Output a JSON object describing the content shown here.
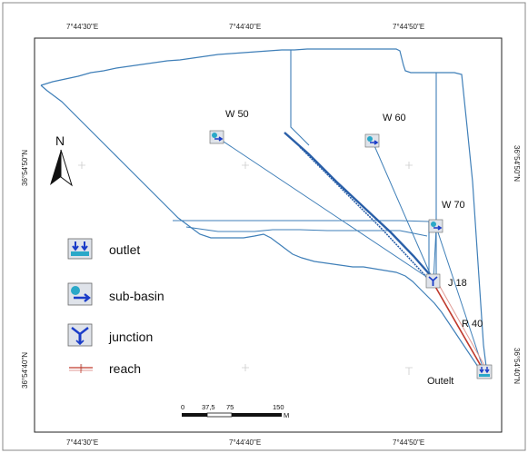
{
  "coords": {
    "top": [
      "7°44'30\"E",
      "7°44'40\"E",
      "7°44'50\"E"
    ],
    "bottom": [
      "7°44'30\"E",
      "7°44'40\"E",
      "7°44'50\"E"
    ],
    "left": [
      "36°54'50\"N",
      "36°54'40\"N"
    ],
    "right": [
      "36°54'50\"N",
      "36°54'40\"N"
    ]
  },
  "north_label": "N",
  "labels": {
    "w50": "W 50",
    "w60": "W 60",
    "w70": "W 70",
    "j18": "J 18",
    "r40": "R 40",
    "outlet": "Outelt"
  },
  "legend": {
    "outlet": "outlet",
    "sub_basin": "sub-basin",
    "junction": "junction",
    "reach": "reach"
  },
  "scale": {
    "ticks": [
      "0",
      "37,5",
      "75",
      "150"
    ],
    "unit": "M"
  },
  "colors": {
    "boundary": "#3f7fb8",
    "stream": "#2a5fa8",
    "reach": "#c0392b",
    "frame": "#222222"
  }
}
